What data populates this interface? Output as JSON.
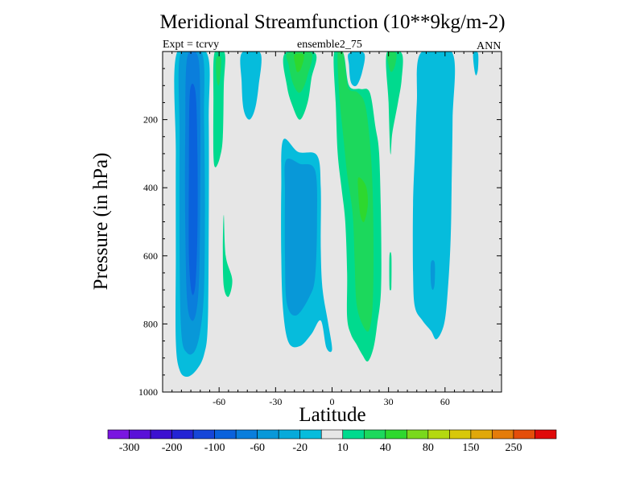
{
  "chart_data": {
    "type": "contour",
    "title": "Meridional Streamfunction (10**9kg/m-2)",
    "left_string": "Expt = tcrvy",
    "center_string": "ensemble2_75",
    "right_string": "ANN",
    "xlabel": "Latitude",
    "ylabel": "Pressure (in hPa)",
    "xlim": [
      -90,
      90
    ],
    "ylim": [
      1000,
      0
    ],
    "x_ticks": [
      {
        "value": -60,
        "label": "-60"
      },
      {
        "value": -30,
        "label": "-30"
      },
      {
        "value": 0,
        "label": "0"
      },
      {
        "value": 30,
        "label": "30"
      },
      {
        "value": 60,
        "label": "60"
      }
    ],
    "y_ticks": [
      {
        "value": 200,
        "label": "200"
      },
      {
        "value": 400,
        "label": "400"
      },
      {
        "value": 600,
        "label": "600"
      },
      {
        "value": 800,
        "label": "800"
      },
      {
        "value": 1000,
        "label": "1000"
      }
    ],
    "levels": [
      "-300",
      "-250",
      "-200",
      "-150",
      "-100",
      "-80",
      "-60",
      "-40",
      "-20",
      "-10",
      "10",
      "20",
      "40",
      "60",
      "80",
      "100",
      "150",
      "200",
      "250",
      "300"
    ],
    "colorbar_labels": [
      "-300",
      "-200",
      "-100",
      "-60",
      "-20",
      "10",
      "40",
      "80",
      "150",
      "250"
    ],
    "colors": [
      "#7a16e0",
      "#5a10d8",
      "#3c10d0",
      "#2424d4",
      "#1646d8",
      "#0a62dc",
      "#0a7edc",
      "#0898d8",
      "#06aada",
      "#06bcdc",
      "#e6e6e6",
      "#00da8e",
      "#1cd85c",
      "#2ed82e",
      "#7ad81c",
      "#b4d810",
      "#d8c80a",
      "#e0a80a",
      "#e47c0a",
      "#e44e0a",
      "#e00a0a"
    ],
    "background_color": "#e6e6e6",
    "regions": [
      {
        "level": "-20",
        "color": "#06bcdc",
        "points": [
          [
            -82.5,
            5
          ],
          [
            -66.5,
            5
          ],
          [
            -65.5,
            200
          ],
          [
            -65.5,
            500
          ],
          [
            -66,
            800
          ],
          [
            -68,
            890
          ],
          [
            -72,
            935
          ],
          [
            -77,
            955
          ],
          [
            -81,
            935
          ],
          [
            -83,
            850
          ],
          [
            -83,
            600
          ],
          [
            -83,
            300
          ]
        ]
      },
      {
        "level": "-40",
        "color": "#0898d8",
        "points": [
          [
            -80.5,
            5
          ],
          [
            -69,
            5
          ],
          [
            -68,
            200
          ],
          [
            -67.5,
            450
          ],
          [
            -68,
            700
          ],
          [
            -70,
            820
          ],
          [
            -73,
            880
          ],
          [
            -77,
            885
          ],
          [
            -80,
            830
          ],
          [
            -81,
            600
          ],
          [
            -81,
            250
          ]
        ]
      },
      {
        "level": "-60",
        "color": "#0a7edc",
        "points": [
          [
            -77,
            20
          ],
          [
            -71,
            20
          ],
          [
            -70,
            200
          ],
          [
            -70,
            400
          ],
          [
            -70.5,
            650
          ],
          [
            -72,
            760
          ],
          [
            -74.5,
            790
          ],
          [
            -77,
            730
          ],
          [
            -78,
            500
          ],
          [
            -78,
            250
          ]
        ]
      },
      {
        "level": "-80",
        "color": "#0a62dc",
        "points": [
          [
            -75.5,
            120
          ],
          [
            -72.5,
            120
          ],
          [
            -71.5,
            300
          ],
          [
            -71.5,
            520
          ],
          [
            -72.5,
            680
          ],
          [
            -74.5,
            710
          ],
          [
            -76,
            600
          ],
          [
            -76,
            350
          ]
        ]
      },
      {
        "level": "-20",
        "color": "#06bcdc",
        "points": [
          [
            -48,
            5
          ],
          [
            -38,
            5
          ],
          [
            -39,
            100
          ],
          [
            -41,
            170
          ],
          [
            -44,
            200
          ],
          [
            -47,
            170
          ],
          [
            -48,
            90
          ]
        ]
      },
      {
        "level": "-20",
        "color": "#06bcdc",
        "points": [
          [
            -26,
            260
          ],
          [
            -18,
            295
          ],
          [
            -8,
            305
          ],
          [
            -6,
            400
          ],
          [
            -6,
            580
          ],
          [
            -5,
            700
          ],
          [
            -2,
            800
          ],
          [
            0,
            875
          ],
          [
            -3,
            870
          ],
          [
            -6,
            790
          ],
          [
            -11,
            830
          ],
          [
            -17,
            865
          ],
          [
            -23,
            855
          ],
          [
            -26,
            760
          ],
          [
            -27,
            600
          ],
          [
            -27,
            400
          ]
        ]
      },
      {
        "level": "-40",
        "color": "#0898d8",
        "points": [
          [
            -24.5,
            320
          ],
          [
            -17,
            330
          ],
          [
            -9,
            350
          ],
          [
            -8,
            500
          ],
          [
            -9,
            660
          ],
          [
            -12,
            720
          ],
          [
            -19,
            775
          ],
          [
            -24,
            740
          ],
          [
            -25,
            600
          ],
          [
            -25,
            420
          ]
        ]
      },
      {
        "level": "-20",
        "color": "#06bcdc",
        "points": [
          [
            9,
            5
          ],
          [
            17,
            5
          ],
          [
            16,
            60
          ],
          [
            13,
            100
          ],
          [
            10,
            90
          ],
          [
            9,
            40
          ]
        ]
      },
      {
        "level": "-20",
        "color": "#06bcdc",
        "points": [
          [
            47,
            5
          ],
          [
            64,
            5
          ],
          [
            64,
            200
          ],
          [
            63.5,
            400
          ],
          [
            63,
            550
          ],
          [
            61.5,
            700
          ],
          [
            59.5,
            800
          ],
          [
            55.5,
            845
          ],
          [
            52.5,
            820
          ],
          [
            48,
            790
          ],
          [
            44,
            750
          ],
          [
            43,
            650
          ],
          [
            43,
            450
          ],
          [
            44,
            300
          ],
          [
            45,
            150
          ]
        ]
      },
      {
        "level": "-40",
        "color": "#0898d8",
        "points": [
          [
            52.5,
            620
          ],
          [
            54.5,
            620
          ],
          [
            54.5,
            680
          ],
          [
            53.5,
            700
          ],
          [
            52.5,
            680
          ]
        ]
      },
      {
        "level": "-20",
        "color": "#06bcdc",
        "points": [
          [
            75,
            5
          ],
          [
            77.5,
            5
          ],
          [
            77.5,
            50
          ],
          [
            76.5,
            70
          ],
          [
            75.5,
            50
          ]
        ]
      },
      {
        "level": "10",
        "color": "#00da8e",
        "points": [
          [
            -62.5,
            5
          ],
          [
            -57,
            5
          ],
          [
            -57.5,
            100
          ],
          [
            -58,
            250
          ],
          [
            -59.5,
            310
          ],
          [
            -62,
            340
          ],
          [
            -63,
            300
          ],
          [
            -63,
            150
          ]
        ]
      },
      {
        "level": "20",
        "color": "#1cd85c",
        "points": [
          [
            -61.5,
            20
          ],
          [
            -59,
            20
          ],
          [
            -59.5,
            80
          ],
          [
            -60.5,
            100
          ],
          [
            -61.5,
            70
          ]
        ]
      },
      {
        "level": "10",
        "color": "#00da8e",
        "points": [
          [
            -57.5,
            480
          ],
          [
            -56.5,
            600
          ],
          [
            -53,
            670
          ],
          [
            -55,
            720
          ],
          [
            -57.5,
            690
          ],
          [
            -58,
            580
          ]
        ]
      },
      {
        "level": "10",
        "color": "#00da8e",
        "points": [
          [
            -25,
            5
          ],
          [
            -9,
            5
          ],
          [
            -11,
            80
          ],
          [
            -13,
            150
          ],
          [
            -17,
            200
          ],
          [
            -21,
            160
          ],
          [
            -24,
            100
          ]
        ]
      },
      {
        "level": "20",
        "color": "#1cd85c",
        "points": [
          [
            -23.5,
            5
          ],
          [
            -11,
            5
          ],
          [
            -13,
            70
          ],
          [
            -15.5,
            110
          ],
          [
            -18,
            120
          ],
          [
            -21,
            90
          ],
          [
            -23,
            40
          ]
        ]
      },
      {
        "level": "40",
        "color": "#2ed82e",
        "points": [
          [
            -20,
            10
          ],
          [
            -15,
            10
          ],
          [
            -16.5,
            50
          ],
          [
            -18.5,
            60
          ],
          [
            -19.5,
            40
          ]
        ]
      },
      {
        "level": "10",
        "color": "#00da8e",
        "points": [
          [
            1,
            5
          ],
          [
            6,
            5
          ],
          [
            9,
            100
          ],
          [
            15,
            110
          ],
          [
            20,
            120
          ],
          [
            23,
            220
          ],
          [
            25,
            300
          ],
          [
            26,
            500
          ],
          [
            26,
            700
          ],
          [
            24,
            800
          ],
          [
            22,
            870
          ],
          [
            19,
            910
          ],
          [
            16,
            890
          ],
          [
            13,
            860
          ],
          [
            10,
            830
          ],
          [
            8,
            780
          ],
          [
            8,
            650
          ],
          [
            7,
            500
          ],
          [
            5,
            400
          ],
          [
            3,
            300
          ],
          [
            2,
            160
          ]
        ]
      },
      {
        "level": "20",
        "color": "#1cd85c",
        "points": [
          [
            3,
            5
          ],
          [
            6,
            5
          ],
          [
            8.5,
            105
          ],
          [
            13.5,
            120
          ],
          [
            17.5,
            155
          ],
          [
            20,
            260
          ],
          [
            21.5,
            400
          ],
          [
            22,
            600
          ],
          [
            21.5,
            750
          ],
          [
            19.5,
            820
          ],
          [
            16,
            800
          ],
          [
            13,
            740
          ],
          [
            12,
            620
          ],
          [
            11,
            480
          ],
          [
            8,
            360
          ],
          [
            6,
            250
          ],
          [
            4,
            140
          ]
        ]
      },
      {
        "level": "40",
        "color": "#2ed82e",
        "points": [
          [
            14,
            370
          ],
          [
            18,
            395
          ],
          [
            19,
            450
          ],
          [
            17,
            500
          ],
          [
            15,
            480
          ],
          [
            14,
            420
          ]
        ]
      },
      {
        "level": "10",
        "color": "#00da8e",
        "points": [
          [
            29,
            5
          ],
          [
            37,
            5
          ],
          [
            37,
            80
          ],
          [
            35,
            150
          ],
          [
            32,
            240
          ],
          [
            31,
            300
          ],
          [
            30,
            150
          ]
        ]
      },
      {
        "level": "20",
        "color": "#1cd85c",
        "points": [
          [
            29.5,
            5
          ],
          [
            34,
            5
          ],
          [
            33.5,
            40
          ],
          [
            31.5,
            60
          ],
          [
            30,
            40
          ]
        ]
      },
      {
        "level": "10",
        "color": "#00da8e",
        "points": [
          [
            30.5,
            600
          ],
          [
            31.5,
            600
          ],
          [
            31.5,
            690
          ],
          [
            31,
            700
          ],
          [
            30.5,
            690
          ]
        ]
      }
    ]
  }
}
